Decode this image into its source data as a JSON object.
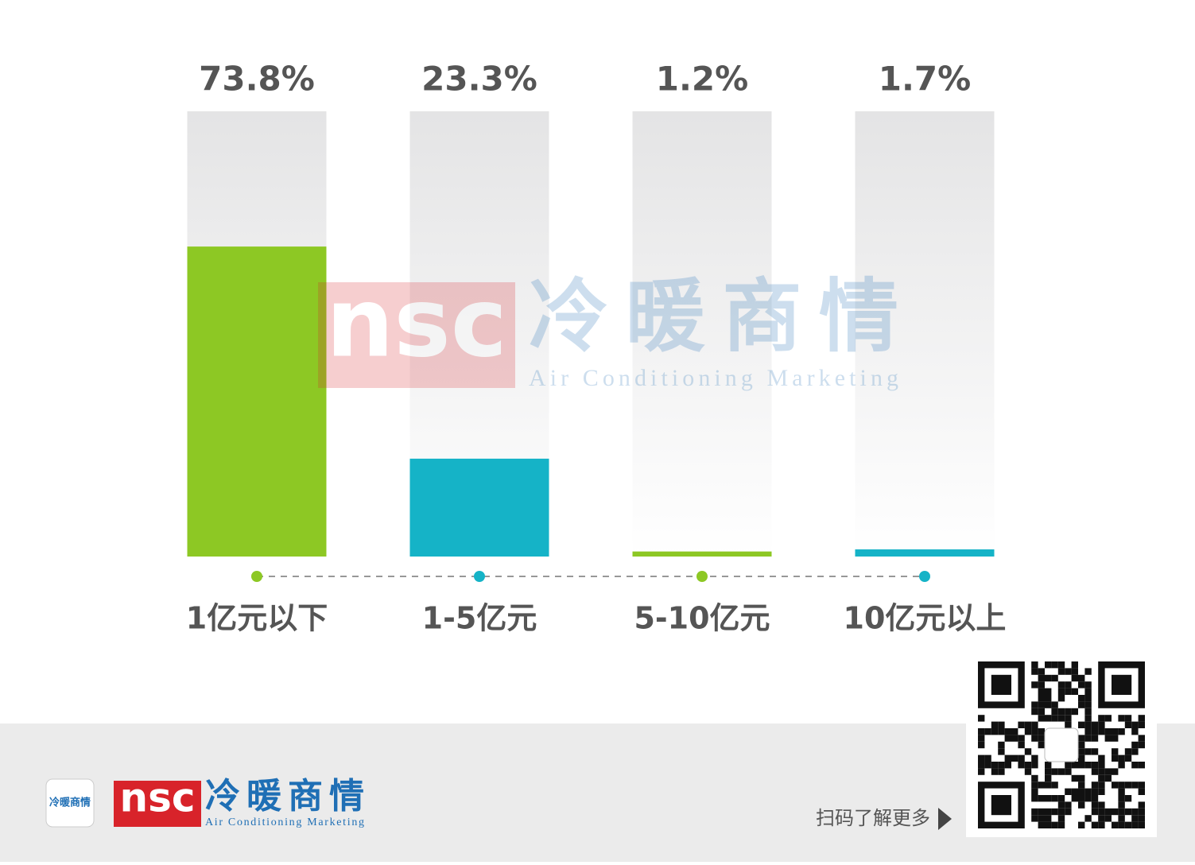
{
  "chart_data": {
    "type": "bar",
    "categories": [
      "1亿元以下",
      "1-5亿元",
      "5-10亿元",
      "10亿元以上"
    ],
    "values": [
      73.8,
      23.3,
      1.2,
      1.7
    ],
    "value_labels": [
      "73.8%",
      "23.3%",
      "1.2%",
      "1.7%"
    ],
    "colors": [
      "#8dc824",
      "#15b3c7",
      "#8dc824",
      "#15b3c7"
    ],
    "ylim": [
      0,
      106
    ]
  },
  "branding": {
    "logo_mark": "nsc",
    "name": "冷暖商情",
    "tagline": "Air Conditioning Marketing",
    "scan_prompt": "扫码了解更多"
  }
}
